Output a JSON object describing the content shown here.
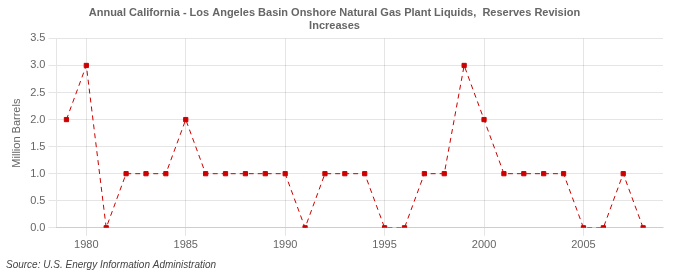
{
  "chart_data": {
    "type": "line",
    "title": "Annual California - Los Angeles Basin Onshore Natural Gas Plant Liquids,  Reserves Revision\nIncreases",
    "ylabel": "Million Barrels",
    "source": "Source: U.S. Energy Information Administration",
    "color": "#cc0000",
    "marker": "square",
    "line_style": "dashed",
    "grid": true,
    "x": [
      1979,
      1980,
      1981,
      1982,
      1983,
      1984,
      1985,
      1986,
      1987,
      1988,
      1989,
      1990,
      1991,
      1992,
      1993,
      1994,
      1995,
      1996,
      1997,
      1998,
      1999,
      2000,
      2001,
      2002,
      2003,
      2004,
      2005,
      2006,
      2007,
      2008
    ],
    "values": [
      2.0,
      3.0,
      0.0,
      1.0,
      1.0,
      1.0,
      2.0,
      1.0,
      1.0,
      1.0,
      1.0,
      1.0,
      0.0,
      1.0,
      1.0,
      1.0,
      0.0,
      0.0,
      1.0,
      1.0,
      3.0,
      2.0,
      1.0,
      1.0,
      1.0,
      1.0,
      0.0,
      0.0,
      1.0,
      0.0
    ],
    "xlim": [
      1978.5,
      2009
    ],
    "xticks": [
      1980,
      1985,
      1990,
      1995,
      2000,
      2005
    ],
    "ylim": [
      0.0,
      3.5
    ],
    "yticks": [
      {
        "value": 0.0,
        "label": "0.0"
      },
      0.5,
      {
        "value": 1.0,
        "label": "1.0"
      },
      1.5,
      {
        "value": 2.0,
        "label": "2.0"
      },
      2.5,
      {
        "value": 3.0,
        "label": "3.0"
      },
      3.5
    ]
  }
}
